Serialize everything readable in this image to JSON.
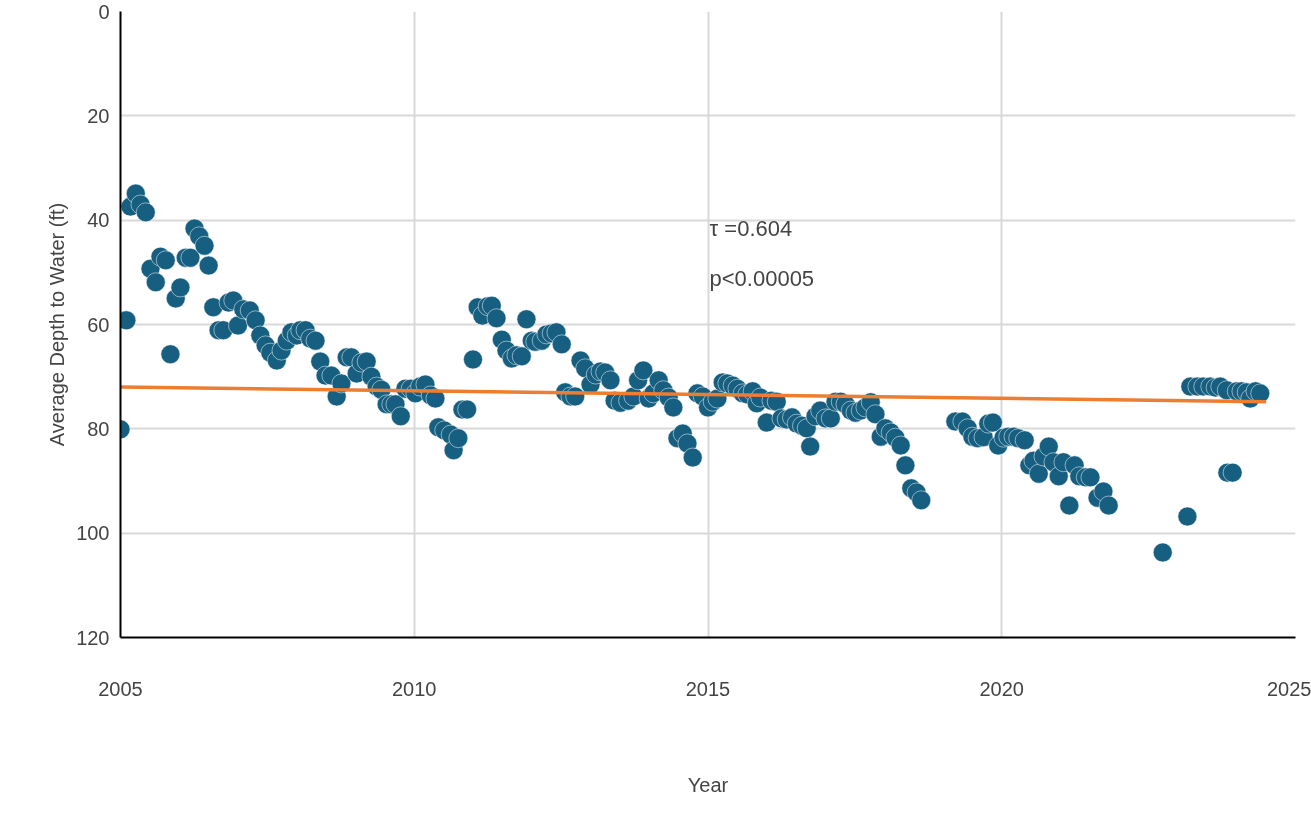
{
  "chart_data": {
    "type": "scatter",
    "xlabel": "Year",
    "ylabel": "Average Depth to Water (ft)",
    "annotations": [
      "τ =0.604",
      "p<0.00005"
    ],
    "xlim": [
      2005,
      2025
    ],
    "xticks": [
      2005,
      2010,
      2015,
      2020,
      2025
    ],
    "ylim": [
      120,
      0
    ],
    "yticks": [
      0,
      20,
      40,
      60,
      80,
      100,
      120
    ],
    "grid": true,
    "series": [
      {
        "marker": "circle",
        "color": "#175f80",
        "x": [
          2005.0,
          2005.1,
          2005.17,
          2005.26,
          2005.34,
          2005.43,
          2005.51,
          2005.6,
          2005.68,
          2005.77,
          2005.85,
          2005.94,
          2006.02,
          2006.11,
          2006.19,
          2006.26,
          2006.34,
          2006.43,
          2006.5,
          2006.58,
          2006.67,
          2006.75,
          2006.84,
          2006.92,
          2007.0,
          2007.09,
          2007.2,
          2007.3,
          2007.38,
          2007.47,
          2007.55,
          2007.66,
          2007.74,
          2007.83,
          2007.91,
          2008.0,
          2008.06,
          2008.15,
          2008.23,
          2008.32,
          2008.4,
          2008.49,
          2008.59,
          2008.68,
          2008.76,
          2008.85,
          2008.93,
          2009.02,
          2009.1,
          2009.19,
          2009.27,
          2009.36,
          2009.44,
          2009.53,
          2009.61,
          2009.68,
          2009.77,
          2009.85,
          2009.94,
          2010.02,
          2010.1,
          2010.19,
          2010.28,
          2010.36,
          2010.41,
          2010.51,
          2010.62,
          2010.67,
          2010.75,
          2010.82,
          2010.9,
          2011.0,
          2011.08,
          2011.16,
          2011.25,
          2011.32,
          2011.4,
          2011.49,
          2011.57,
          2011.66,
          2011.74,
          2011.83,
          2011.91,
          2012.0,
          2012.06,
          2012.17,
          2012.25,
          2012.34,
          2012.42,
          2012.51,
          2012.57,
          2012.66,
          2012.74,
          2012.83,
          2012.91,
          2013.0,
          2013.09,
          2013.17,
          2013.25,
          2013.34,
          2013.41,
          2013.51,
          2013.64,
          2013.73,
          2013.81,
          2013.9,
          2013.99,
          2014.07,
          2014.16,
          2014.24,
          2014.33,
          2014.41,
          2014.48,
          2014.57,
          2014.65,
          2014.74,
          2014.82,
          2014.91,
          2015.0,
          2015.08,
          2015.16,
          2015.25,
          2015.33,
          2015.42,
          2015.5,
          2015.59,
          2015.67,
          2015.76,
          2015.83,
          2015.89,
          2016.0,
          2016.08,
          2016.17,
          2016.25,
          2016.34,
          2016.43,
          2016.51,
          2016.6,
          2016.68,
          2016.74,
          2016.83,
          2016.91,
          2017.0,
          2017.09,
          2017.17,
          2017.26,
          2017.34,
          2017.43,
          2017.51,
          2017.6,
          2017.68,
          2017.77,
          2017.85,
          2017.94,
          2018.02,
          2018.11,
          2018.19,
          2018.28,
          2018.36,
          2018.46,
          2018.55,
          2018.63,
          2019.21,
          2019.33,
          2019.42,
          2019.5,
          2019.59,
          2019.69,
          2019.77,
          2019.85,
          2019.94,
          2020.03,
          2020.11,
          2020.2,
          2020.28,
          2020.39,
          2020.47,
          2020.54,
          2020.63,
          2020.71,
          2020.8,
          2020.88,
          2020.97,
          2021.05,
          2021.15,
          2021.24,
          2021.32,
          2021.43,
          2021.51,
          2021.63,
          2021.73,
          2021.82,
          2022.74,
          2023.16,
          2023.21,
          2023.33,
          2023.43,
          2023.55,
          2023.64,
          2023.72,
          2023.83,
          2023.84,
          2023.93,
          2024.0,
          2024.08,
          2024.17,
          2024.23,
          2024.32,
          2024.4
        ],
        "values": [
          80.1,
          59.2,
          37.4,
          34.9,
          37.0,
          38.5,
          49.3,
          51.9,
          47.0,
          47.7,
          65.7,
          55.0,
          52.9,
          47.2,
          47.2,
          41.6,
          43.1,
          44.9,
          48.7,
          56.7,
          61.1,
          61.1,
          55.8,
          55.4,
          60.2,
          57.1,
          57.3,
          59.2,
          62.1,
          64.0,
          65.4,
          66.9,
          65.0,
          63.1,
          61.5,
          62.1,
          61.1,
          61.1,
          62.7,
          63.1,
          67.1,
          69.8,
          69.8,
          73.8,
          71.3,
          66.3,
          66.3,
          69.4,
          67.3,
          67.1,
          70.0,
          71.9,
          72.5,
          75.3,
          75.3,
          75.3,
          77.6,
          72.3,
          72.3,
          73.2,
          71.9,
          71.5,
          73.6,
          74.2,
          79.7,
          80.3,
          81.1,
          84.1,
          81.8,
          76.3,
          76.3,
          66.7,
          56.7,
          58.3,
          56.5,
          56.4,
          58.8,
          62.9,
          65.0,
          66.5,
          65.9,
          66.1,
          59.0,
          63.1,
          63.3,
          63.1,
          61.9,
          61.7,
          61.5,
          63.8,
          73.0,
          73.8,
          73.8,
          66.9,
          68.4,
          71.5,
          69.6,
          69.0,
          69.2,
          70.7,
          74.6,
          75.0,
          74.6,
          73.8,
          70.7,
          68.8,
          74.2,
          73.2,
          70.7,
          72.6,
          74.0,
          75.9,
          81.8,
          80.9,
          82.8,
          85.5,
          73.2,
          73.8,
          75.9,
          74.8,
          74.2,
          71.1,
          71.3,
          71.7,
          72.3,
          73.2,
          73.4,
          72.8,
          75.1,
          74.0,
          78.8,
          74.6,
          74.8,
          78.0,
          78.2,
          77.8,
          79.0,
          79.4,
          79.9,
          83.4,
          77.6,
          76.5,
          78.0,
          78.0,
          74.8,
          74.8,
          75.3,
          76.5,
          76.9,
          76.5,
          75.9,
          74.9,
          77.2,
          81.5,
          79.9,
          80.7,
          81.7,
          83.2,
          87.0,
          91.4,
          92.2,
          93.7,
          78.6,
          78.6,
          79.9,
          81.5,
          81.8,
          81.6,
          79.0,
          78.8,
          83.2,
          81.7,
          81.5,
          81.5,
          81.8,
          82.2,
          87.0,
          86.1,
          88.6,
          85.3,
          83.4,
          86.4,
          89.1,
          86.4,
          94.7,
          87.0,
          89.1,
          89.3,
          89.3,
          93.2,
          92.0,
          94.7,
          103.7,
          96.8,
          71.9,
          71.9,
          71.9,
          71.9,
          72.1,
          71.9,
          72.6,
          88.4,
          88.4,
          72.8,
          72.8,
          73.0,
          74.2,
          72.8,
          73.2
        ]
      },
      {
        "type": "line",
        "marker": "none",
        "color": "#ed7d31",
        "x": [
          2005,
          2024.5
        ],
        "values": [
          72.0,
          74.8
        ]
      }
    ]
  }
}
